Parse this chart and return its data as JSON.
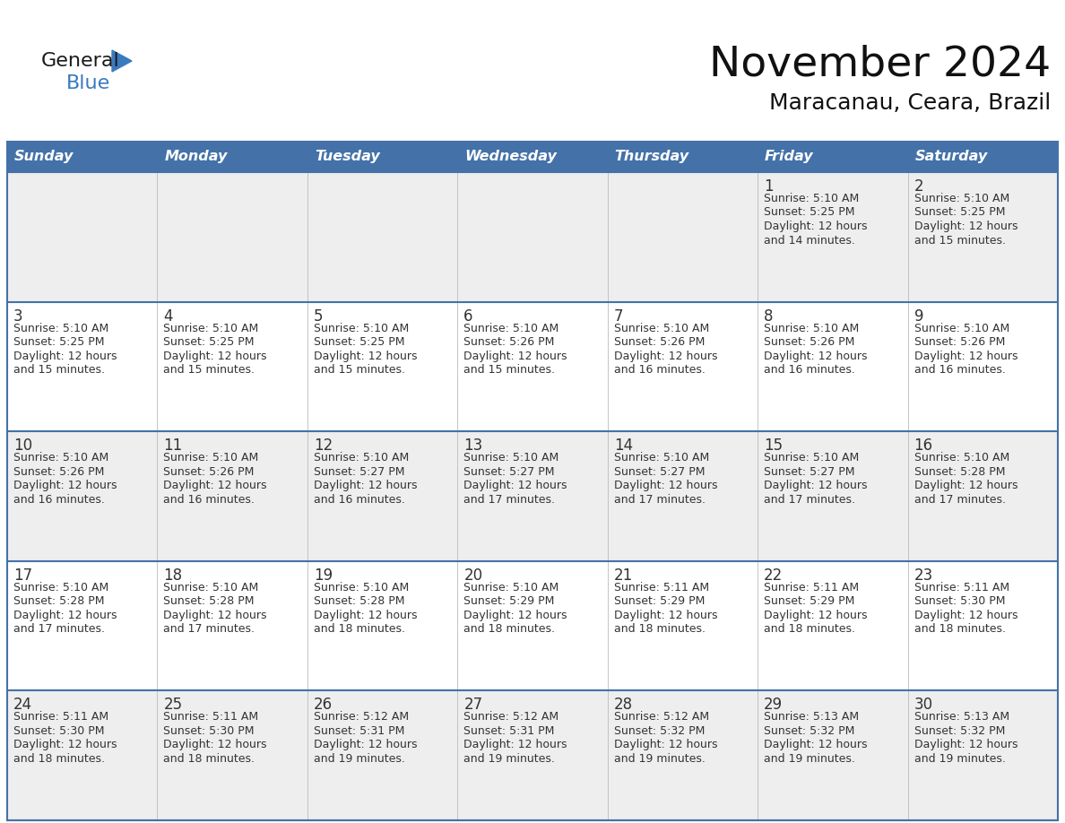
{
  "title": "November 2024",
  "subtitle": "Maracanau, Ceara, Brazil",
  "header_color": "#4472A8",
  "header_text_color": "#FFFFFF",
  "cell_bg_even": "#EEEEEE",
  "cell_bg_odd": "#FFFFFF",
  "border_color": "#4472A8",
  "text_color": "#333333",
  "days_of_week": [
    "Sunday",
    "Monday",
    "Tuesday",
    "Wednesday",
    "Thursday",
    "Friday",
    "Saturday"
  ],
  "logo_general_color": "#1a1a1a",
  "logo_blue_color": "#3a7abf",
  "logo_triangle_color": "#3a7abf",
  "weeks": [
    [
      {
        "day": "",
        "info": ""
      },
      {
        "day": "",
        "info": ""
      },
      {
        "day": "",
        "info": ""
      },
      {
        "day": "",
        "info": ""
      },
      {
        "day": "",
        "info": ""
      },
      {
        "day": "1",
        "info": "Sunrise: 5:10 AM\nSunset: 5:25 PM\nDaylight: 12 hours\nand 14 minutes."
      },
      {
        "day": "2",
        "info": "Sunrise: 5:10 AM\nSunset: 5:25 PM\nDaylight: 12 hours\nand 15 minutes."
      }
    ],
    [
      {
        "day": "3",
        "info": "Sunrise: 5:10 AM\nSunset: 5:25 PM\nDaylight: 12 hours\nand 15 minutes."
      },
      {
        "day": "4",
        "info": "Sunrise: 5:10 AM\nSunset: 5:25 PM\nDaylight: 12 hours\nand 15 minutes."
      },
      {
        "day": "5",
        "info": "Sunrise: 5:10 AM\nSunset: 5:25 PM\nDaylight: 12 hours\nand 15 minutes."
      },
      {
        "day": "6",
        "info": "Sunrise: 5:10 AM\nSunset: 5:26 PM\nDaylight: 12 hours\nand 15 minutes."
      },
      {
        "day": "7",
        "info": "Sunrise: 5:10 AM\nSunset: 5:26 PM\nDaylight: 12 hours\nand 16 minutes."
      },
      {
        "day": "8",
        "info": "Sunrise: 5:10 AM\nSunset: 5:26 PM\nDaylight: 12 hours\nand 16 minutes."
      },
      {
        "day": "9",
        "info": "Sunrise: 5:10 AM\nSunset: 5:26 PM\nDaylight: 12 hours\nand 16 minutes."
      }
    ],
    [
      {
        "day": "10",
        "info": "Sunrise: 5:10 AM\nSunset: 5:26 PM\nDaylight: 12 hours\nand 16 minutes."
      },
      {
        "day": "11",
        "info": "Sunrise: 5:10 AM\nSunset: 5:26 PM\nDaylight: 12 hours\nand 16 minutes."
      },
      {
        "day": "12",
        "info": "Sunrise: 5:10 AM\nSunset: 5:27 PM\nDaylight: 12 hours\nand 16 minutes."
      },
      {
        "day": "13",
        "info": "Sunrise: 5:10 AM\nSunset: 5:27 PM\nDaylight: 12 hours\nand 17 minutes."
      },
      {
        "day": "14",
        "info": "Sunrise: 5:10 AM\nSunset: 5:27 PM\nDaylight: 12 hours\nand 17 minutes."
      },
      {
        "day": "15",
        "info": "Sunrise: 5:10 AM\nSunset: 5:27 PM\nDaylight: 12 hours\nand 17 minutes."
      },
      {
        "day": "16",
        "info": "Sunrise: 5:10 AM\nSunset: 5:28 PM\nDaylight: 12 hours\nand 17 minutes."
      }
    ],
    [
      {
        "day": "17",
        "info": "Sunrise: 5:10 AM\nSunset: 5:28 PM\nDaylight: 12 hours\nand 17 minutes."
      },
      {
        "day": "18",
        "info": "Sunrise: 5:10 AM\nSunset: 5:28 PM\nDaylight: 12 hours\nand 17 minutes."
      },
      {
        "day": "19",
        "info": "Sunrise: 5:10 AM\nSunset: 5:28 PM\nDaylight: 12 hours\nand 18 minutes."
      },
      {
        "day": "20",
        "info": "Sunrise: 5:10 AM\nSunset: 5:29 PM\nDaylight: 12 hours\nand 18 minutes."
      },
      {
        "day": "21",
        "info": "Sunrise: 5:11 AM\nSunset: 5:29 PM\nDaylight: 12 hours\nand 18 minutes."
      },
      {
        "day": "22",
        "info": "Sunrise: 5:11 AM\nSunset: 5:29 PM\nDaylight: 12 hours\nand 18 minutes."
      },
      {
        "day": "23",
        "info": "Sunrise: 5:11 AM\nSunset: 5:30 PM\nDaylight: 12 hours\nand 18 minutes."
      }
    ],
    [
      {
        "day": "24",
        "info": "Sunrise: 5:11 AM\nSunset: 5:30 PM\nDaylight: 12 hours\nand 18 minutes."
      },
      {
        "day": "25",
        "info": "Sunrise: 5:11 AM\nSunset: 5:30 PM\nDaylight: 12 hours\nand 18 minutes."
      },
      {
        "day": "26",
        "info": "Sunrise: 5:12 AM\nSunset: 5:31 PM\nDaylight: 12 hours\nand 19 minutes."
      },
      {
        "day": "27",
        "info": "Sunrise: 5:12 AM\nSunset: 5:31 PM\nDaylight: 12 hours\nand 19 minutes."
      },
      {
        "day": "28",
        "info": "Sunrise: 5:12 AM\nSunset: 5:32 PM\nDaylight: 12 hours\nand 19 minutes."
      },
      {
        "day": "29",
        "info": "Sunrise: 5:13 AM\nSunset: 5:32 PM\nDaylight: 12 hours\nand 19 minutes."
      },
      {
        "day": "30",
        "info": "Sunrise: 5:13 AM\nSunset: 5:32 PM\nDaylight: 12 hours\nand 19 minutes."
      }
    ]
  ]
}
